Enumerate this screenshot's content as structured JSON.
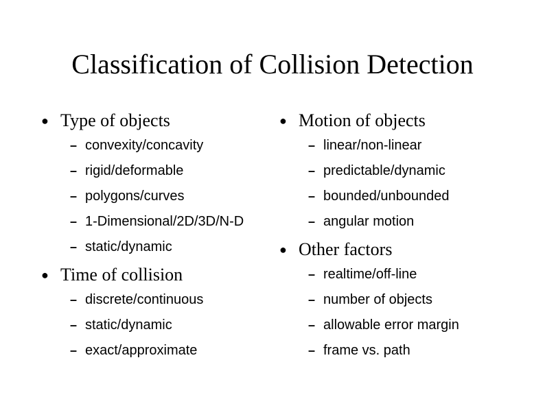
{
  "title": "Classification of Collision Detection",
  "colors": {
    "background": "#ffffff",
    "text": "#000000"
  },
  "typography": {
    "title_font": "Times New Roman",
    "title_fontsize_pt": 30,
    "section_font": "Times New Roman",
    "section_fontsize_pt": 20,
    "item_font": "Arial",
    "item_fontsize_pt": 15,
    "bullet_glyph": "●",
    "dash_glyph": "–"
  },
  "left": {
    "sections": [
      {
        "heading": "Type of objects",
        "items": [
          "convexity/concavity",
          "rigid/deformable",
          "polygons/curves",
          "1-Dimensional/2D/3D/N-D",
          "static/dynamic"
        ]
      },
      {
        "heading": "Time of collision",
        "items": [
          "discrete/continuous",
          "static/dynamic",
          "exact/approximate"
        ]
      }
    ]
  },
  "right": {
    "sections": [
      {
        "heading": "Motion of objects",
        "items": [
          "linear/non-linear",
          "predictable/dynamic",
          "bounded/unbounded",
          "angular motion"
        ]
      },
      {
        "heading": "Other factors",
        "items": [
          "realtime/off-line",
          "number of objects",
          "allowable error margin",
          "frame vs. path"
        ]
      }
    ]
  }
}
